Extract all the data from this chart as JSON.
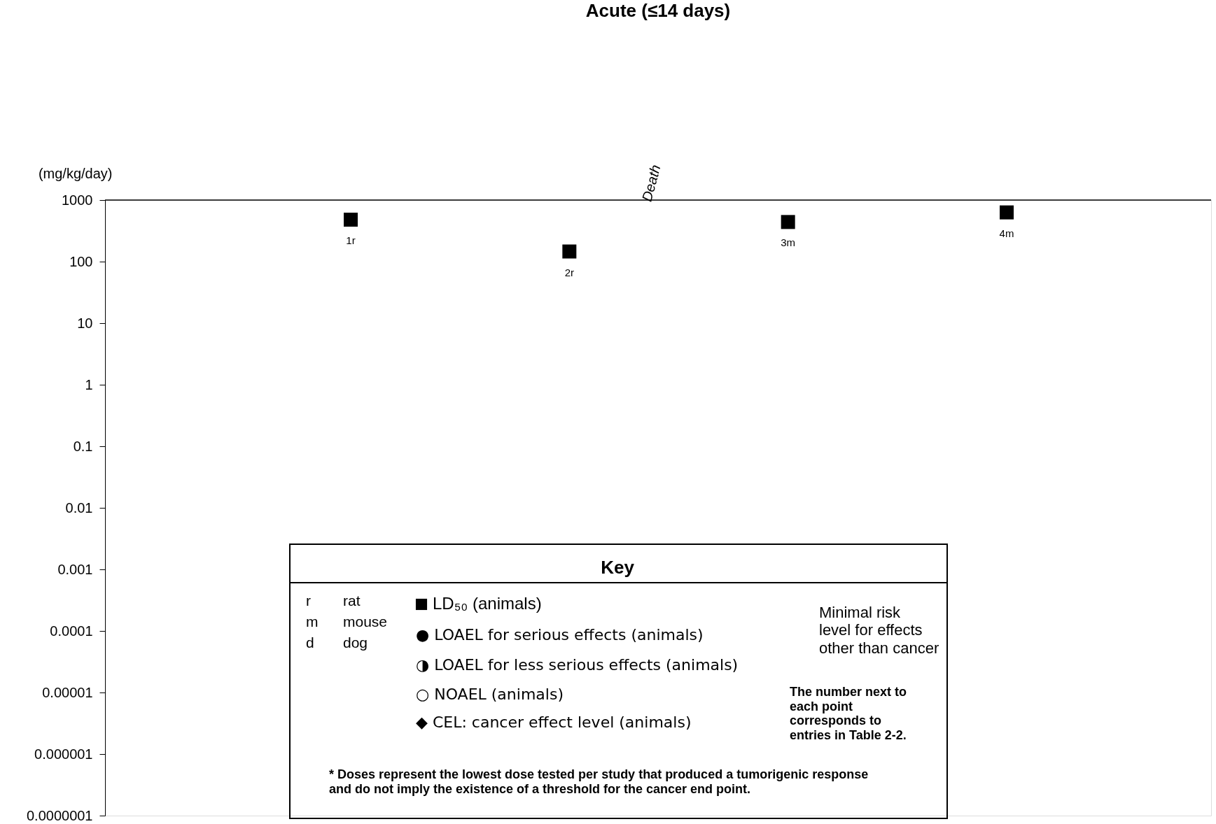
{
  "chart_data": {
    "type": "scatter",
    "title": "Acute (≤14 days)",
    "ylabel": "(mg/kg/day)",
    "categories": [
      null,
      null,
      null,
      null
    ],
    "series": [
      {
        "name": "LD₅₀ (animals)",
        "color": "#000000",
        "values": [
          480,
          146,
          440,
          630
        ]
      }
    ],
    "marker": "square",
    "log": true,
    "ylim": [
      1e-07,
      1000
    ],
    "yticks": [
      {
        "value": 1000,
        "label": "1000"
      },
      {
        "value": 100,
        "label": "100"
      },
      {
        "value": 10,
        "label": "10"
      },
      {
        "value": 1,
        "label": "1"
      },
      {
        "value": 0.1,
        "label": "0.1"
      },
      {
        "value": 0.01,
        "label": "0.01"
      },
      {
        "value": 0.001,
        "label": "0.001"
      },
      {
        "value": 0.0001,
        "label": "0.0001"
      },
      {
        "value": 1e-05,
        "label": "0.00001"
      },
      {
        "value": 1e-06,
        "label": "0.000001"
      },
      {
        "value": 1e-07,
        "label": "0.0000001"
      }
    ],
    "legend": "bottom",
    "grid": false,
    "tick_labels": "y",
    "annotations": [
      "Death",
      "Key",
      "r",
      "rat",
      "m",
      "mouse",
      "d",
      "dog",
      "● LOAEL for serious effects (animals)",
      "◑ LOAEL for less serious effects (animals)",
      "○ NOAEL (animals)",
      "◆ CEL: cancer effect level (animals)",
      "Minimal risk level for effects other than cancer",
      "The number next to each point corresponds to entries in Table 2-2.",
      "* Doses represent the lowest dose tested per study that produced a tumorigenic response and do not imply the existence of a threshold for the cancer end point.",
      "1r",
      "2r",
      "3m",
      "4m"
    ]
  }
}
